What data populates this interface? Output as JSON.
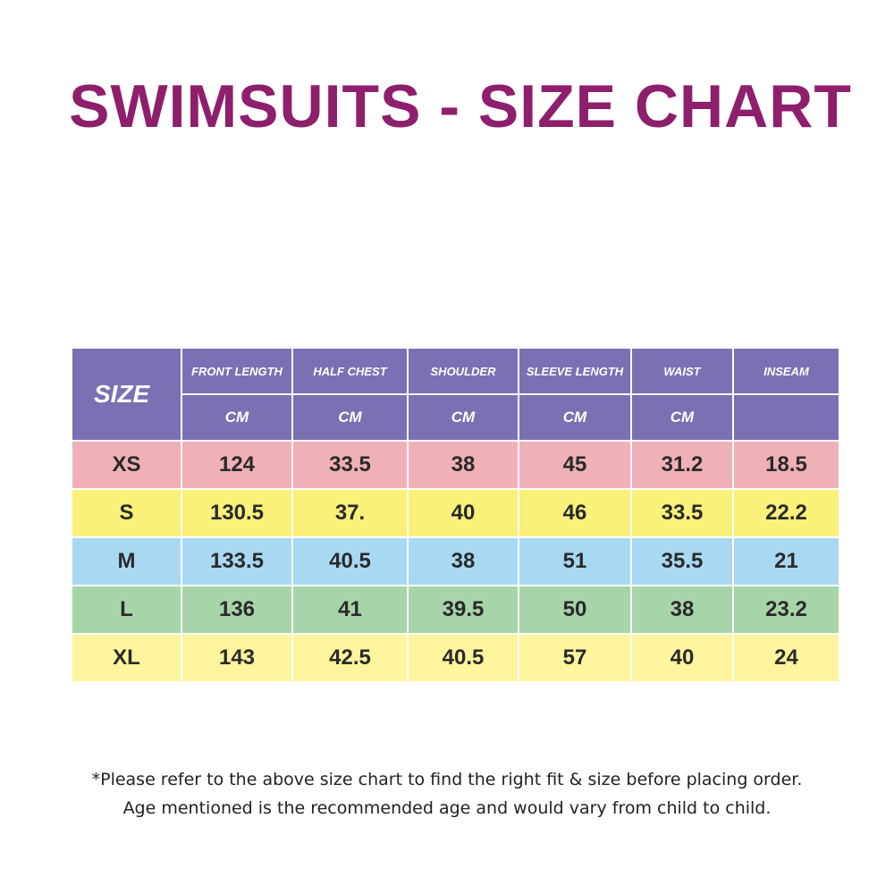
{
  "title": "SWIMSUITS - SIZE CHART",
  "colors": {
    "title": "#8e1f6c",
    "header_bg": "#7b70b3",
    "row_xs": "#f0b0b7",
    "row_s": "#fbf07a",
    "row_m": "#a9d9f2",
    "row_l": "#a6d5a8",
    "row_xl": "#fdf59d"
  },
  "table": {
    "size_header": "SIZE",
    "columns": [
      {
        "label": "FRONT LENGTH",
        "unit": "CM"
      },
      {
        "label": "HALF CHEST",
        "unit": "CM"
      },
      {
        "label": "SHOULDER",
        "unit": "CM"
      },
      {
        "label": "SLEEVE LENGTH",
        "unit": "CM"
      },
      {
        "label": "WAIST",
        "unit": "CM"
      },
      {
        "label": "INSEAM",
        "unit": ""
      }
    ],
    "rows": [
      {
        "size": "XS",
        "values": [
          "124",
          "33.5",
          "38",
          "45",
          "31.2",
          "18.5"
        ]
      },
      {
        "size": "S",
        "values": [
          "130.5",
          "37.",
          "40",
          "46",
          "33.5",
          "22.2"
        ]
      },
      {
        "size": "M",
        "values": [
          "133.5",
          "40.5",
          "38",
          "51",
          "35.5",
          "21"
        ]
      },
      {
        "size": "L",
        "values": [
          "136",
          "41",
          "39.5",
          "50",
          "38",
          "23.2"
        ]
      },
      {
        "size": "XL",
        "values": [
          "143",
          "42.5",
          "40.5",
          "57",
          "40",
          "24"
        ]
      }
    ]
  },
  "notes": {
    "line1": "*Please refer to the above size chart to find the right fit & size before placing order.",
    "line2": "Age mentioned is the recommended age and would vary from child to child."
  }
}
